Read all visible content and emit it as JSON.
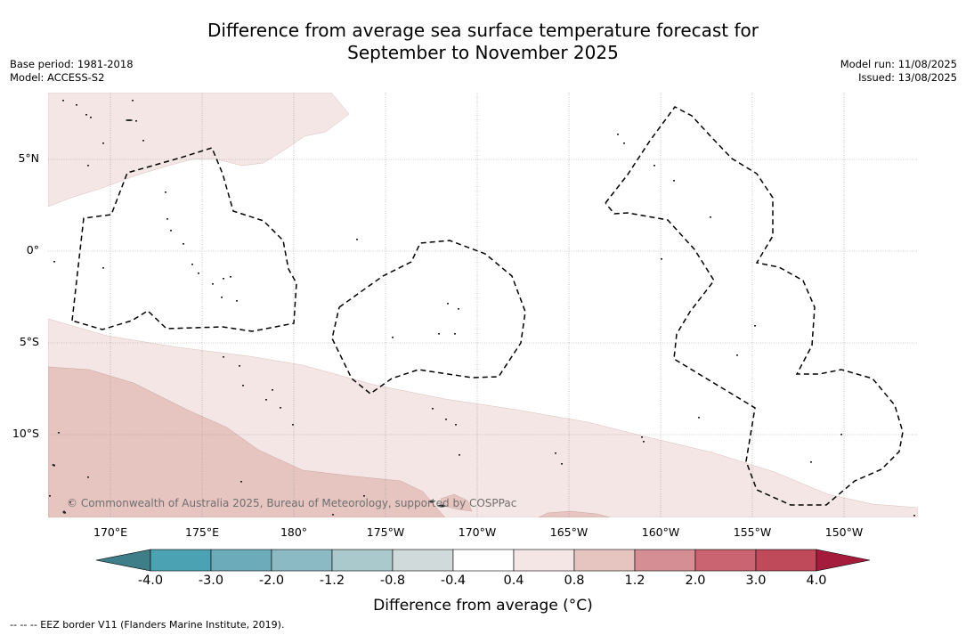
{
  "title_line1": "Difference from average sea surface temperature forecast for",
  "title_line2": "September to November 2025",
  "meta_left": {
    "base_period": "Base period: 1981-2018",
    "model": "Model: ACCESS-S2"
  },
  "meta_right": {
    "model_run": "Model run: 11/08/2025",
    "issued": "Issued: 13/08/2025"
  },
  "map": {
    "longitude_labels": [
      "170°E",
      "175°E",
      "180°",
      "175°W",
      "170°W",
      "165°W",
      "160°W",
      "155°W",
      "150°W"
    ],
    "latitude_labels": [
      "5°N",
      "0°",
      "5°S",
      "10°S"
    ],
    "copyright": "© Commonwealth of Australia 2025, Bureau of Meteorology, supported by COSPPac",
    "colors": {
      "anomaly_0_4_to_0_8": "#f4e6e4",
      "anomaly_0_8_to_1_2": "#e6c5c1",
      "land": "#333333",
      "grid": "#999999"
    }
  },
  "colorbar": {
    "ticks": [
      "-4.0",
      "-3.0",
      "-2.0",
      "-1.2",
      "-0.8",
      "-0.4",
      "0.4",
      "0.8",
      "1.2",
      "2.0",
      "3.0",
      "4.0"
    ],
    "colors": [
      "#3d7e88",
      "#4aa2b3",
      "#6babba",
      "#8bbac4",
      "#a9c9cc",
      "#d0dada",
      "#ffffff",
      "#f4e6e4",
      "#e6c5c1",
      "#d58e94",
      "#c96470",
      "#be4a5a",
      "#a51b3c"
    ],
    "label": "Difference from average (°C)"
  },
  "footnote": "-- -- -- EEZ border V11 (Flanders Marine Institute, 2019)."
}
